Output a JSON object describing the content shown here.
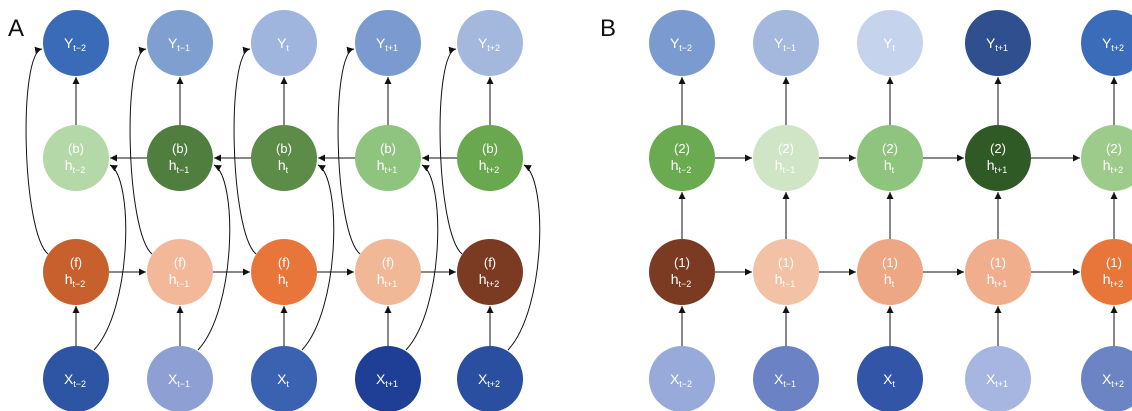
{
  "panels": [
    {
      "letter": "A",
      "rows": [
        {
          "id": "y",
          "prefix": "",
          "base": "Y",
          "subs": [
            "t−2",
            "t−1",
            "t",
            "t+1",
            "t+2"
          ],
          "colors": [
            "#3a6bb8",
            "#7e9fd0",
            "#9fb5dd",
            "#7b9bd0",
            "#a4b8de"
          ]
        },
        {
          "id": "b",
          "prefix": "(b)",
          "base": "h",
          "subs": [
            "t−2",
            "t−1",
            "t",
            "t+1",
            "t+2"
          ],
          "colors": [
            "#b5d8a8",
            "#4f7e3e",
            "#5c8c48",
            "#8fc47e",
            "#6aa84f"
          ]
        },
        {
          "id": "f",
          "prefix": "(f)",
          "base": "h",
          "subs": [
            "t−2",
            "t−1",
            "t",
            "t+1",
            "t+2"
          ],
          "colors": [
            "#c8602e",
            "#f3b899",
            "#e8763b",
            "#f1b898",
            "#7b3b22"
          ]
        },
        {
          "id": "x",
          "prefix": "",
          "base": "X",
          "subs": [
            "t−2",
            "t−1",
            "t",
            "t+1",
            "t+2"
          ],
          "colors": [
            "#2e55a3",
            "#8d9fd3",
            "#3a62b0",
            "#1e3f95",
            "#2a4ea0"
          ]
        }
      ]
    },
    {
      "letter": "B",
      "rows": [
        {
          "id": "y",
          "prefix": "",
          "base": "Y",
          "subs": [
            "t−2",
            "t−1",
            "t",
            "t+1",
            "t+2"
          ],
          "colors": [
            "#7b9bd0",
            "#a4b8de",
            "#c6d3ec",
            "#2f4f8f",
            "#3b6cba"
          ]
        },
        {
          "id": "h2",
          "prefix": "(2)",
          "base": "h",
          "subs": [
            "t−2",
            "t−1",
            "t",
            "t+1",
            "t+2"
          ],
          "colors": [
            "#6aaa50",
            "#cfe5c5",
            "#8fc47e",
            "#2f5a25",
            "#9ccb8b"
          ]
        },
        {
          "id": "h1",
          "prefix": "(1)",
          "base": "h",
          "subs": [
            "t−2",
            "t−1",
            "t",
            "t+1",
            "t+2"
          ],
          "colors": [
            "#7b3b22",
            "#f3c2a6",
            "#eea784",
            "#f0ae8d",
            "#e8763b"
          ]
        },
        {
          "id": "x",
          "prefix": "",
          "base": "X",
          "subs": [
            "t−2",
            "t−1",
            "t",
            "t+1",
            "t+2"
          ],
          "colors": [
            "#98aad9",
            "#6b82c4",
            "#3355a8",
            "#a7b6e1",
            "#6d84c4"
          ]
        }
      ]
    }
  ]
}
